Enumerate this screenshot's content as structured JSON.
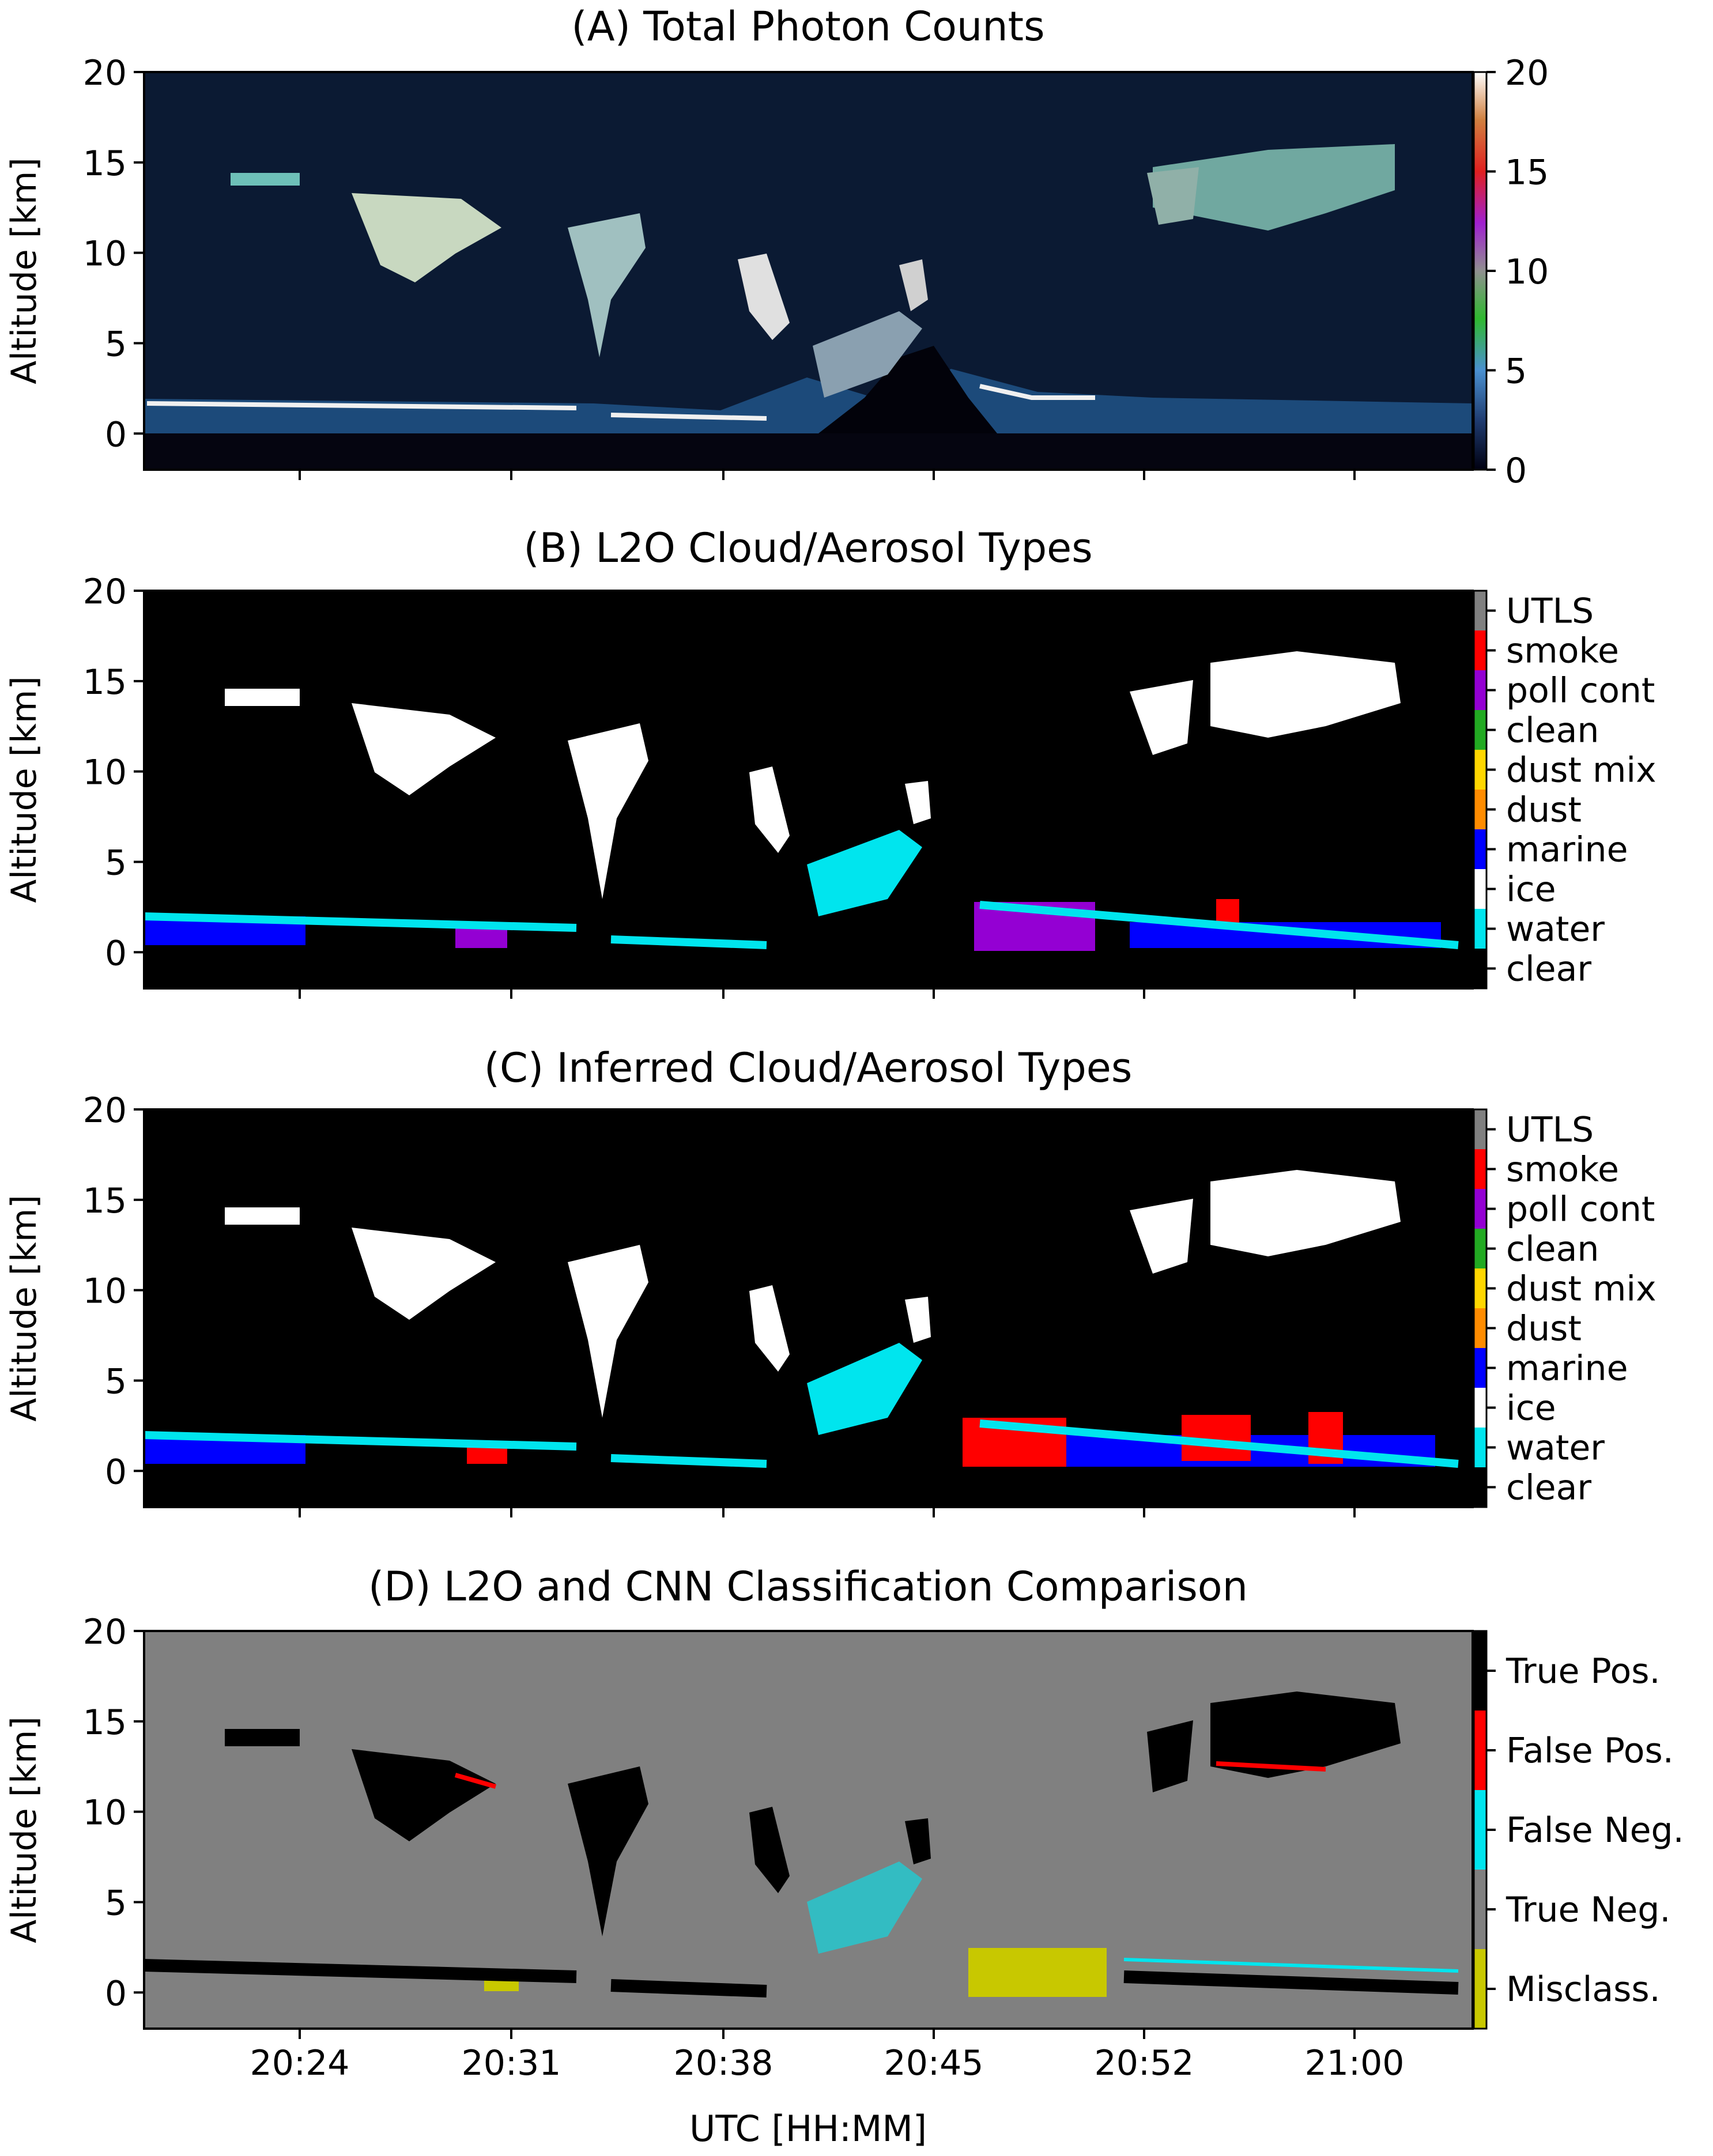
{
  "chart_data": [
    {
      "id": "A",
      "type": "heatmap",
      "title": "(A) Total Photon Counts",
      "ylabel": "Altitude [km]",
      "xlabel": "",
      "ylim": [
        -2,
        20
      ],
      "yticks": [
        0,
        5,
        10,
        15,
        20
      ],
      "xtick_labels": [],
      "colorbar": {
        "kind": "continuous",
        "range": [
          0,
          20
        ],
        "ticks": [
          0,
          5,
          10,
          15,
          20
        ]
      }
    },
    {
      "id": "B",
      "type": "heatmap",
      "title": "(B) L2O Cloud/Aerosol Types",
      "ylabel": "Altitude [km]",
      "xlabel": "",
      "ylim": [
        -2,
        20
      ],
      "yticks": [
        0,
        5,
        10,
        15,
        20
      ],
      "xtick_labels": [],
      "colorbar": {
        "kind": "categorical",
        "categories": [
          "clear",
          "water",
          "ice",
          "marine",
          "dust",
          "dust mix",
          "clean",
          "poll cont",
          "smoke",
          "UTLS"
        ],
        "colors": [
          "#000000",
          "#00e5ee",
          "#ffffff",
          "#0000ff",
          "#ff8c00",
          "#ffd700",
          "#22aa22",
          "#9400d3",
          "#ff0000",
          "#808080"
        ]
      }
    },
    {
      "id": "C",
      "type": "heatmap",
      "title": "(C) Inferred Cloud/Aerosol Types",
      "ylabel": "Altitude [km]",
      "xlabel": "",
      "ylim": [
        -2,
        20
      ],
      "yticks": [
        0,
        5,
        10,
        15,
        20
      ],
      "xtick_labels": [],
      "colorbar": {
        "kind": "categorical",
        "categories": [
          "clear",
          "water",
          "ice",
          "marine",
          "dust",
          "dust mix",
          "clean",
          "poll cont",
          "smoke",
          "UTLS"
        ],
        "colors": [
          "#000000",
          "#00e5ee",
          "#ffffff",
          "#0000ff",
          "#ff8c00",
          "#ffd700",
          "#22aa22",
          "#9400d3",
          "#ff0000",
          "#808080"
        ]
      }
    },
    {
      "id": "D",
      "type": "heatmap",
      "title": "(D) L2O and CNN Classification Comparison",
      "ylabel": "Altitude [km]",
      "xlabel": "UTC [HH:MM]",
      "ylim": [
        -2,
        20
      ],
      "yticks": [
        0,
        5,
        10,
        15,
        20
      ],
      "xtick_labels": [
        "20:24",
        "20:31",
        "20:38",
        "20:45",
        "20:52",
        "21:00"
      ],
      "colorbar": {
        "kind": "categorical",
        "categories": [
          "Misclass.",
          "True Neg.",
          "False Neg.",
          "False Pos.",
          "True Pos."
        ],
        "colors": [
          "#c8c800",
          "#808080",
          "#00e5ee",
          "#ff0000",
          "#000000"
        ]
      }
    }
  ]
}
